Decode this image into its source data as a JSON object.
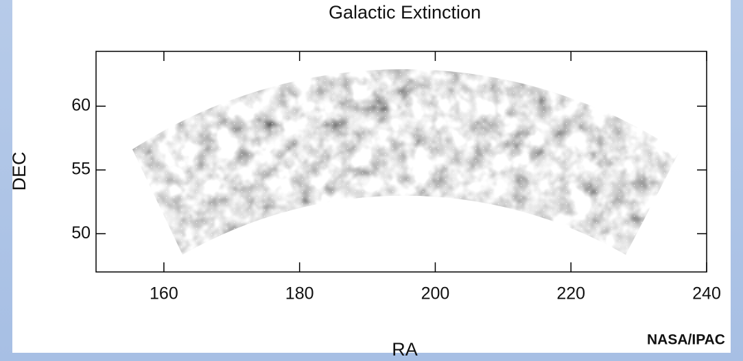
{
  "chart_data": {
    "type": "map",
    "title": "Galactic Extinction",
    "x_label": "RA",
    "y_label": "DEC",
    "credit": "NASA/IPAC",
    "xlim": [
      150,
      240
    ],
    "xticks": [
      160,
      180,
      200,
      220,
      240
    ],
    "ylim": [
      47,
      64.3
    ],
    "yticks": [
      50,
      55,
      60
    ]
  }
}
